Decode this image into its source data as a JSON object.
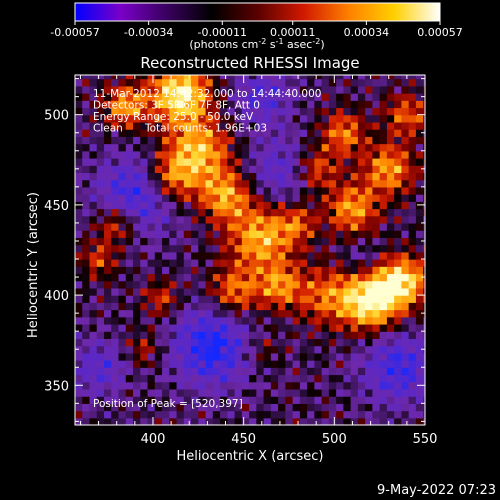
{
  "chart_data": {
    "type": "heatmap",
    "title": "Reconstructed RHESSI Image",
    "xlabel": "Heliocentric X (arcsec)",
    "ylabel": "Heliocentric Y (arcsec)",
    "xlim": [
      357,
      550
    ],
    "ylim": [
      328,
      522
    ],
    "xticks": [
      400,
      450,
      500,
      550
    ],
    "yticks": [
      350,
      400,
      450,
      500
    ],
    "colorbar": {
      "min": -0.00057,
      "max": 0.00057,
      "ticks": [
        "-0.00057",
        "-0.00034",
        "-0.00011",
        "0.00011",
        "0.00034",
        "0.00057"
      ],
      "unit_parts": {
        "open": "(photons cm",
        "e1": "-2",
        "s": " s",
        "e2": "-1",
        "a": " asec",
        "e3": "-2",
        "close": ")"
      },
      "colors": [
        "#0000ff",
        "#7a00c8",
        "#3a0060",
        "#000000",
        "#5a0000",
        "#d01800",
        "#ff8000",
        "#ffd000",
        "#ffffff"
      ]
    },
    "peak": {
      "x": 520,
      "y": 397
    },
    "grid": false
  },
  "annotations": {
    "line1": "11-Mar-2012 14:42:32.000 to 14:44:40.000",
    "line2": "Detectors: 3F 5F 6F 7F 8F, Att 0",
    "line3": "Energy Range: 25.0 - 50.0 keV",
    "line4_method": "Clean",
    "line4_counts": "Total counts: 1.96E+03",
    "peak_label": "Position of Peak = [520,397]"
  },
  "timestamp": "9-May-2022 07:23"
}
